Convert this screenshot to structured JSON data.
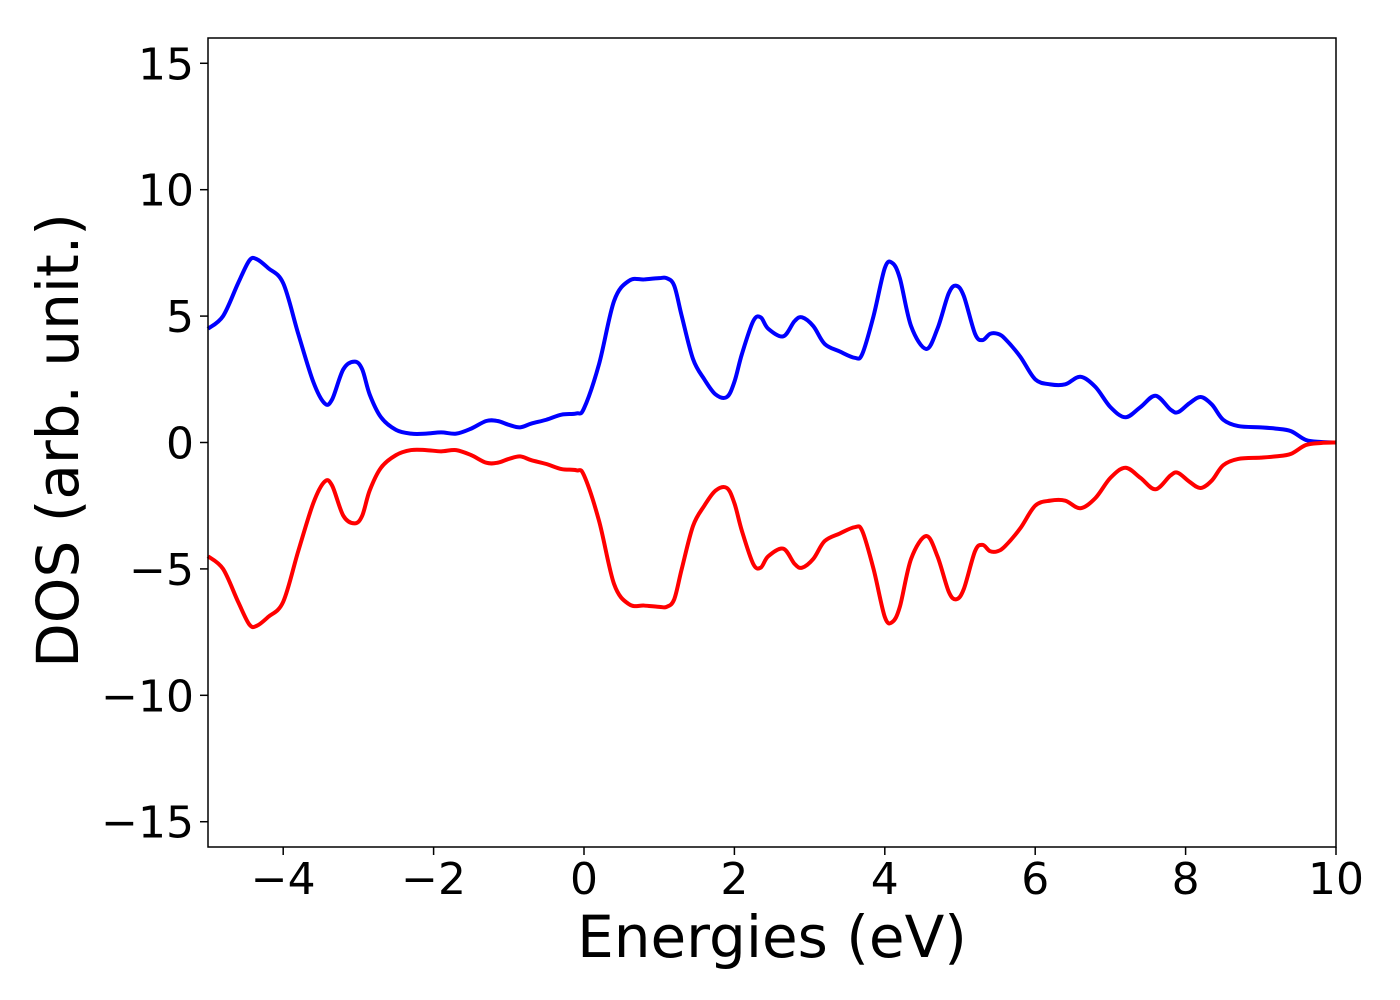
{
  "chart_data": {
    "type": "line",
    "title": "",
    "xlabel": "Energies (eV)",
    "ylabel": "DOS (arb. unit.)",
    "xlim": [
      -5,
      10
    ],
    "ylim": [
      -16,
      16
    ],
    "x_ticks": [
      -4,
      -2,
      0,
      2,
      4,
      6,
      8,
      10
    ],
    "x_tick_labels": [
      "−4",
      "−2",
      "0",
      "2",
      "4",
      "6",
      "8",
      "10"
    ],
    "y_ticks": [
      -15,
      -10,
      -5,
      0,
      5,
      10,
      15
    ],
    "y_tick_labels": [
      "−15",
      "−10",
      "−5",
      "0",
      "5",
      "10",
      "15"
    ],
    "grid": false,
    "legend": "none",
    "series": [
      {
        "color": "#0000ff",
        "x": [
          -5.0,
          -4.8,
          -4.6,
          -4.45,
          -4.35,
          -4.2,
          -4.0,
          -3.8,
          -3.6,
          -3.45,
          -3.35,
          -3.2,
          -3.05,
          -2.95,
          -2.85,
          -2.7,
          -2.5,
          -2.3,
          -2.1,
          -1.9,
          -1.7,
          -1.5,
          -1.3,
          -1.15,
          -1.0,
          -0.85,
          -0.7,
          -0.5,
          -0.3,
          -0.1,
          0.0,
          0.2,
          0.4,
          0.6,
          0.8,
          1.0,
          1.1,
          1.2,
          1.3,
          1.45,
          1.6,
          1.75,
          1.9,
          2.0,
          2.1,
          2.25,
          2.35,
          2.45,
          2.65,
          2.8,
          2.9,
          3.05,
          3.2,
          3.4,
          3.6,
          3.7,
          3.85,
          4.0,
          4.1,
          4.2,
          4.35,
          4.55,
          4.7,
          4.85,
          4.95,
          5.05,
          5.2,
          5.3,
          5.4,
          5.5,
          5.6,
          5.8,
          6.0,
          6.2,
          6.4,
          6.6,
          6.8,
          7.0,
          7.2,
          7.4,
          7.6,
          7.8,
          7.9,
          8.05,
          8.2,
          8.35,
          8.5,
          8.7,
          9.0,
          9.2,
          9.4,
          9.6,
          9.8,
          10.0
        ],
        "values": [
          4.5,
          5.0,
          6.3,
          7.2,
          7.25,
          6.9,
          6.3,
          4.3,
          2.4,
          1.55,
          1.7,
          2.9,
          3.2,
          2.9,
          1.9,
          1.0,
          0.5,
          0.35,
          0.35,
          0.4,
          0.35,
          0.55,
          0.85,
          0.85,
          0.7,
          0.6,
          0.75,
          0.9,
          1.1,
          1.15,
          1.35,
          3.1,
          5.6,
          6.4,
          6.45,
          6.5,
          6.5,
          6.2,
          5.0,
          3.3,
          2.5,
          1.9,
          1.8,
          2.4,
          3.5,
          4.8,
          4.95,
          4.5,
          4.2,
          4.8,
          4.95,
          4.6,
          3.9,
          3.6,
          3.35,
          3.5,
          5.0,
          6.9,
          7.1,
          6.5,
          4.6,
          3.7,
          4.5,
          5.9,
          6.2,
          5.8,
          4.3,
          4.05,
          4.3,
          4.3,
          4.1,
          3.4,
          2.5,
          2.3,
          2.3,
          2.6,
          2.2,
          1.4,
          1.0,
          1.4,
          1.85,
          1.3,
          1.2,
          1.55,
          1.8,
          1.5,
          0.9,
          0.65,
          0.6,
          0.55,
          0.45,
          0.1,
          0.02,
          0.0
        ]
      },
      {
        "color": "#ff0000",
        "x": [
          -5.0,
          -4.8,
          -4.6,
          -4.45,
          -4.35,
          -4.2,
          -4.0,
          -3.8,
          -3.6,
          -3.45,
          -3.35,
          -3.2,
          -3.05,
          -2.95,
          -2.85,
          -2.7,
          -2.5,
          -2.3,
          -2.1,
          -1.9,
          -1.7,
          -1.5,
          -1.3,
          -1.15,
          -1.0,
          -0.85,
          -0.7,
          -0.5,
          -0.3,
          -0.1,
          0.0,
          0.2,
          0.4,
          0.6,
          0.8,
          1.0,
          1.1,
          1.2,
          1.3,
          1.45,
          1.6,
          1.75,
          1.9,
          2.0,
          2.1,
          2.25,
          2.35,
          2.45,
          2.65,
          2.8,
          2.9,
          3.05,
          3.2,
          3.4,
          3.6,
          3.7,
          3.85,
          4.0,
          4.1,
          4.2,
          4.35,
          4.55,
          4.7,
          4.85,
          4.95,
          5.05,
          5.2,
          5.3,
          5.4,
          5.5,
          5.6,
          5.8,
          6.0,
          6.2,
          6.4,
          6.6,
          6.8,
          7.0,
          7.2,
          7.4,
          7.6,
          7.8,
          7.9,
          8.05,
          8.2,
          8.35,
          8.5,
          8.7,
          9.0,
          9.2,
          9.4,
          9.6,
          9.8,
          10.0
        ],
        "values": [
          -4.5,
          -5.0,
          -6.3,
          -7.2,
          -7.25,
          -6.9,
          -6.3,
          -4.3,
          -2.4,
          -1.55,
          -1.7,
          -2.9,
          -3.2,
          -2.9,
          -1.9,
          -1.0,
          -0.5,
          -0.3,
          -0.3,
          -0.35,
          -0.3,
          -0.5,
          -0.8,
          -0.8,
          -0.65,
          -0.55,
          -0.7,
          -0.85,
          -1.05,
          -1.1,
          -1.3,
          -3.1,
          -5.6,
          -6.4,
          -6.45,
          -6.5,
          -6.5,
          -6.2,
          -5.0,
          -3.3,
          -2.5,
          -1.9,
          -1.8,
          -2.4,
          -3.5,
          -4.8,
          -4.95,
          -4.5,
          -4.2,
          -4.8,
          -4.95,
          -4.6,
          -3.9,
          -3.6,
          -3.35,
          -3.5,
          -5.0,
          -6.9,
          -7.1,
          -6.5,
          -4.6,
          -3.7,
          -4.5,
          -5.9,
          -6.2,
          -5.8,
          -4.3,
          -4.05,
          -4.3,
          -4.3,
          -4.1,
          -3.4,
          -2.5,
          -2.3,
          -2.3,
          -2.6,
          -2.2,
          -1.4,
          -1.0,
          -1.4,
          -1.85,
          -1.3,
          -1.2,
          -1.55,
          -1.8,
          -1.5,
          -0.9,
          -0.65,
          -0.6,
          -0.55,
          -0.45,
          -0.1,
          -0.02,
          0.0
        ]
      }
    ]
  }
}
